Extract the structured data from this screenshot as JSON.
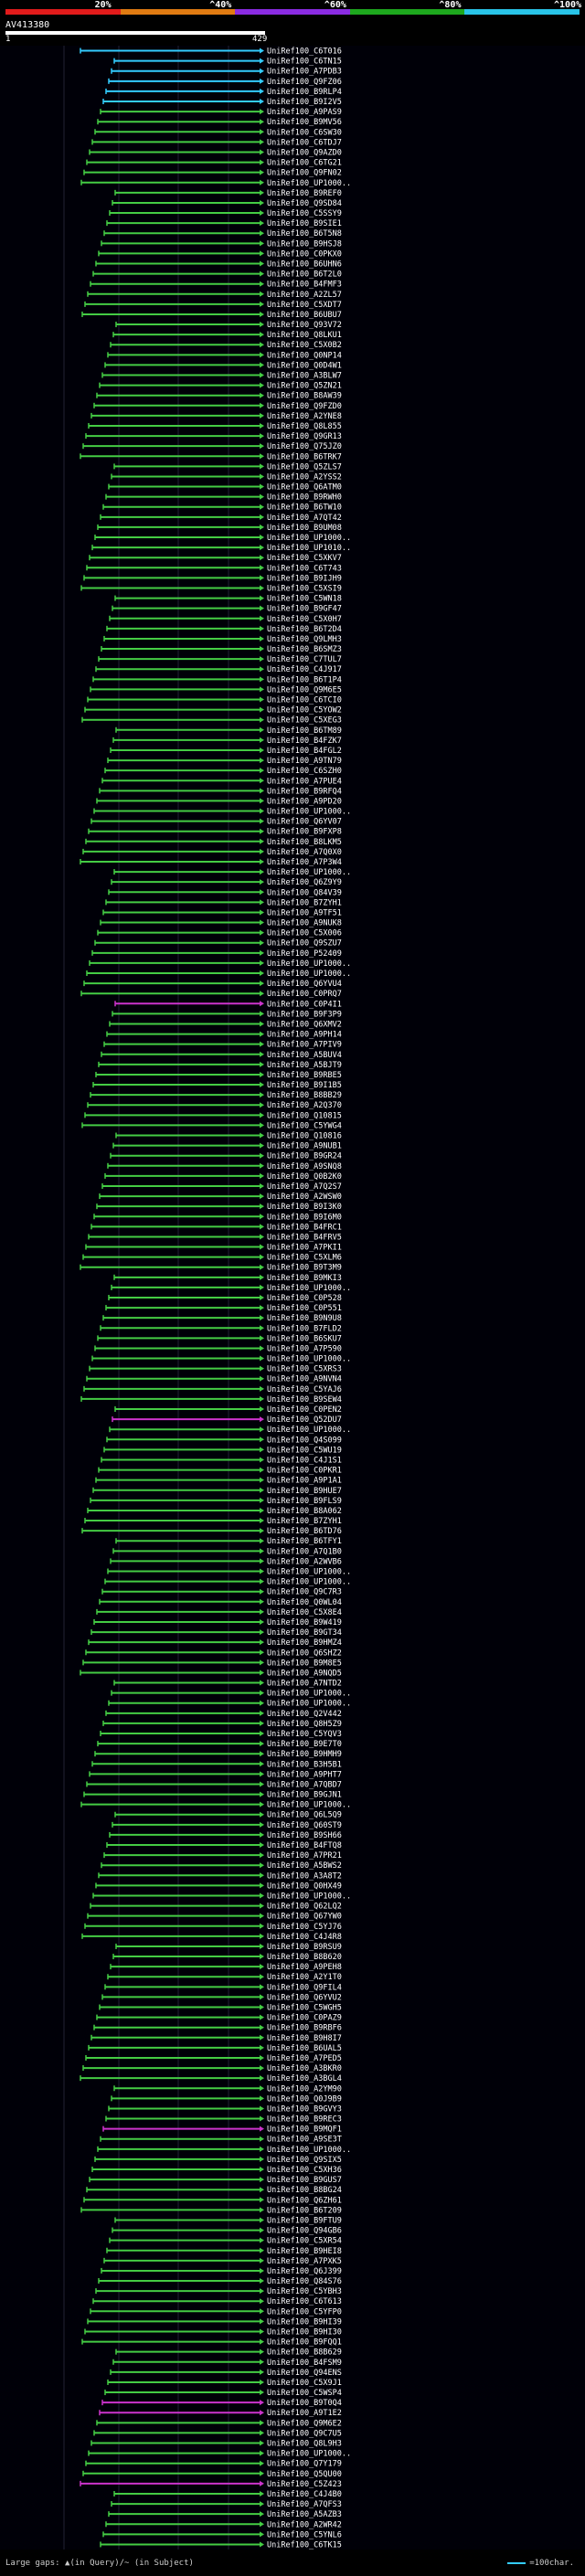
{
  "scale": {
    "labels": [
      "20%",
      "^40%",
      "^60%",
      "^80%",
      "^100%"
    ],
    "colors": [
      "#e21b1b",
      "#e07b12",
      "#8a2be2",
      "#1ea81e",
      "#29c4e8"
    ]
  },
  "query": {
    "name": "AV413380",
    "start": "1",
    "end": "429"
  },
  "hits": [
    {
      "label": "UniRef100_C6T016",
      "color": "#3cf"
    },
    {
      "label": "UniRef100_C6TN15",
      "color": "#3cf"
    },
    {
      "label": "UniRef100_A7PDB3",
      "color": "#3cf"
    },
    {
      "label": "UniRef100_Q9FZ06",
      "color": "#3cf"
    },
    {
      "label": "UniRef100_B9RLP4",
      "color": "#3cf"
    },
    {
      "label": "UniRef100_B9I2V5",
      "color": "#3cf"
    },
    {
      "label": "UniRef100_A9PAS9",
      "color": "#4c4"
    },
    {
      "label": "UniRef100_B9MV56",
      "color": "#4c4"
    },
    {
      "label": "UniRef100_C6SW30",
      "color": "#4c4"
    },
    {
      "label": "UniRef100_C6TDJ7",
      "color": "#4c4"
    },
    {
      "label": "UniRef100_Q9AZD0",
      "color": "#4c4"
    },
    {
      "label": "UniRef100_C6TG21",
      "color": "#4c4"
    },
    {
      "label": "UniRef100_Q9FN02",
      "color": "#4c4"
    },
    {
      "label": "UniRef100_UP1000..",
      "color": "#4c4"
    },
    {
      "label": "UniRef100_B9REF0",
      "color": "#4c4"
    },
    {
      "label": "UniRef100_Q9SD84",
      "color": "#4c4"
    },
    {
      "label": "UniRef100_C5SSY9",
      "color": "#4c4"
    },
    {
      "label": "UniRef100_B9SIE1",
      "color": "#4c4"
    },
    {
      "label": "UniRef100_B6T5N8",
      "color": "#4c4"
    },
    {
      "label": "UniRef100_B9HSJ8",
      "color": "#4c4"
    },
    {
      "label": "UniRef100_C0PKX0",
      "color": "#4c4"
    },
    {
      "label": "UniRef100_B6UHN6",
      "color": "#4c4"
    },
    {
      "label": "UniRef100_B6T2L0",
      "color": "#4c4"
    },
    {
      "label": "UniRef100_B4FMF3",
      "color": "#4c4"
    },
    {
      "label": "UniRef100_A2ZL57",
      "color": "#4c4"
    },
    {
      "label": "UniRef100_C5XDT7",
      "color": "#4c4"
    },
    {
      "label": "UniRef100_B6UBU7",
      "color": "#4c4"
    },
    {
      "label": "UniRef100_Q93V72",
      "color": "#4c4"
    },
    {
      "label": "UniRef100_Q8LKU1",
      "color": "#4c4"
    },
    {
      "label": "UniRef100_C5X0B2",
      "color": "#4c4"
    },
    {
      "label": "UniRef100_Q0NP14",
      "color": "#4c4"
    },
    {
      "label": "UniRef100_Q0D4W1",
      "color": "#4c4"
    },
    {
      "label": "UniRef100_A3BLW7",
      "color": "#4c4"
    },
    {
      "label": "UniRef100_Q5ZN21",
      "color": "#4c4"
    },
    {
      "label": "UniRef100_B8AW39",
      "color": "#4c4"
    },
    {
      "label": "UniRef100_Q9FZD0",
      "color": "#4c4"
    },
    {
      "label": "UniRef100_A2YNE8",
      "color": "#4c4"
    },
    {
      "label": "UniRef100_Q8L855",
      "color": "#4c4"
    },
    {
      "label": "UniRef100_Q9GR13",
      "color": "#4c4"
    },
    {
      "label": "UniRef100_Q75JZ0",
      "color": "#4c4"
    },
    {
      "label": "UniRef100_B6TRK7",
      "color": "#4c4"
    },
    {
      "label": "UniRef100_Q5ZLS7",
      "color": "#4c4"
    },
    {
      "label": "UniRef100_A2YSS2",
      "color": "#4c4"
    },
    {
      "label": "UniRef100_Q6ATM0",
      "color": "#4c4"
    },
    {
      "label": "UniRef100_B9RWH0",
      "color": "#4c4"
    },
    {
      "label": "UniRef100_B6TW10",
      "color": "#4c4"
    },
    {
      "label": "UniRef100_A7QT42",
      "color": "#4c4"
    },
    {
      "label": "UniRef100_B9UM08",
      "color": "#4c4"
    },
    {
      "label": "UniRef100_UP1000..",
      "color": "#4c4"
    },
    {
      "label": "UniRef100_UP1010..",
      "color": "#4c4"
    },
    {
      "label": "UniRef100_C5XKV7",
      "color": "#4c4"
    },
    {
      "label": "UniRef100_C6T743",
      "color": "#4c4"
    },
    {
      "label": "UniRef100_B9IJH9",
      "color": "#4c4"
    },
    {
      "label": "UniRef100_C5XSI9",
      "color": "#4c4"
    },
    {
      "label": "UniRef100_C5WN18",
      "color": "#4c4"
    },
    {
      "label": "UniRef100_B9GF47",
      "color": "#4c4"
    },
    {
      "label": "UniRef100_C5X0H7",
      "color": "#4c4"
    },
    {
      "label": "UniRef100_B6T2D4",
      "color": "#4c4"
    },
    {
      "label": "UniRef100_Q9LMH3",
      "color": "#4c4"
    },
    {
      "label": "UniRef100_B6SMZ3",
      "color": "#4c4"
    },
    {
      "label": "UniRef100_C7TUL7",
      "color": "#4c4"
    },
    {
      "label": "UniRef100_C4J917",
      "color": "#4c4"
    },
    {
      "label": "UniRef100_B6T1P4",
      "color": "#4c4"
    },
    {
      "label": "UniRef100_Q9M6E5",
      "color": "#4c4"
    },
    {
      "label": "UniRef100_C6TCI0",
      "color": "#4c4"
    },
    {
      "label": "UniRef100_C5YOW2",
      "color": "#4c4"
    },
    {
      "label": "UniRef100_C5XEG3",
      "color": "#4c4"
    },
    {
      "label": "UniRef100_B6TM89",
      "color": "#4c4"
    },
    {
      "label": "UniRef100_B4FZK7",
      "color": "#4c4"
    },
    {
      "label": "UniRef100_B4FGL2",
      "color": "#4c4"
    },
    {
      "label": "UniRef100_A9TN79",
      "color": "#4c4"
    },
    {
      "label": "UniRef100_C6SZH0",
      "color": "#4c4"
    },
    {
      "label": "UniRef100_A7PUE4",
      "color": "#4c4"
    },
    {
      "label": "UniRef100_B9RFQ4",
      "color": "#4c4"
    },
    {
      "label": "UniRef100_A9PD20",
      "color": "#4c4"
    },
    {
      "label": "UniRef100_UP1000..",
      "color": "#4c4"
    },
    {
      "label": "UniRef100_Q6YV07",
      "color": "#4c4"
    },
    {
      "label": "UniRef100_B9FXP8",
      "color": "#4c4"
    },
    {
      "label": "UniRef100_B8LKM5",
      "color": "#4c4"
    },
    {
      "label": "UniRef100_A7Q0X0",
      "color": "#4c4"
    },
    {
      "label": "UniRef100_A7P3W4",
      "color": "#4c4"
    },
    {
      "label": "UniRef100_UP1000..",
      "color": "#4c4"
    },
    {
      "label": "UniRef100_Q6Z9Y9",
      "color": "#4c4"
    },
    {
      "label": "UniRef100_Q84V39",
      "color": "#4c4"
    },
    {
      "label": "UniRef100_B7ZYH1",
      "color": "#4c4"
    },
    {
      "label": "UniRef100_A9TF51",
      "color": "#4c4"
    },
    {
      "label": "UniRef100_A9NUK8",
      "color": "#4c4"
    },
    {
      "label": "UniRef100_C5X006",
      "color": "#4c4"
    },
    {
      "label": "UniRef100_Q9SZU7",
      "color": "#4c4"
    },
    {
      "label": "UniRef100_P52409",
      "color": "#4c4"
    },
    {
      "label": "UniRef100_UP1000..",
      "color": "#4c4"
    },
    {
      "label": "UniRef100_UP1000..",
      "color": "#4c4"
    },
    {
      "label": "UniRef100_Q6YVU4",
      "color": "#4c4"
    },
    {
      "label": "UniRef100_C0PRQ7",
      "color": "#4c4"
    },
    {
      "label": "UniRef100_C0P4I1",
      "color": "#c3c"
    },
    {
      "label": "UniRef100_B9F3P9",
      "color": "#4c4"
    },
    {
      "label": "UniRef100_Q6XMV2",
      "color": "#4c4"
    },
    {
      "label": "UniRef100_A9PH14",
      "color": "#4c4"
    },
    {
      "label": "UniRef100_A7PIV9",
      "color": "#4c4"
    },
    {
      "label": "UniRef100_A5BUV4",
      "color": "#4c4"
    },
    {
      "label": "UniRef100_A5BJT9",
      "color": "#4c4"
    },
    {
      "label": "UniRef100_B9RBE5",
      "color": "#4c4"
    },
    {
      "label": "UniRef100_B9I1B5",
      "color": "#4c4"
    },
    {
      "label": "UniRef100_B8BB29",
      "color": "#4c4"
    },
    {
      "label": "UniRef100_A2Q370",
      "color": "#4c4"
    },
    {
      "label": "UniRef100_Q10815",
      "color": "#4c4"
    },
    {
      "label": "UniRef100_C5YWG4",
      "color": "#4c4"
    },
    {
      "label": "UniRef100_Q10816",
      "color": "#4c4"
    },
    {
      "label": "UniRef100_A9NUB1",
      "color": "#4c4"
    },
    {
      "label": "UniRef100_B9GR24",
      "color": "#4c4"
    },
    {
      "label": "UniRef100_A9SNQ8",
      "color": "#4c4"
    },
    {
      "label": "UniRef100_Q0B2K0",
      "color": "#4c4"
    },
    {
      "label": "UniRef100_A7Q2S7",
      "color": "#4c4"
    },
    {
      "label": "UniRef100_A2WSW0",
      "color": "#4c4"
    },
    {
      "label": "UniRef100_B9I3K0",
      "color": "#4c4"
    },
    {
      "label": "UniRef100_B9I6M0",
      "color": "#4c4"
    },
    {
      "label": "UniRef100_B4FRC1",
      "color": "#4c4"
    },
    {
      "label": "UniRef100_B4FRV5",
      "color": "#4c4"
    },
    {
      "label": "UniRef100_A7PKI1",
      "color": "#4c4"
    },
    {
      "label": "UniRef100_C5XLM6",
      "color": "#4c4"
    },
    {
      "label": "UniRef100_B9T3M9",
      "color": "#4c4"
    },
    {
      "label": "UniRef100_B9MKI3",
      "color": "#4c4"
    },
    {
      "label": "UniRef100_UP1000..",
      "color": "#4c4"
    },
    {
      "label": "UniRef100_C0P528",
      "color": "#4c4"
    },
    {
      "label": "UniRef100_C0P551",
      "color": "#4c4"
    },
    {
      "label": "UniRef100_B9N9U8",
      "color": "#4c4"
    },
    {
      "label": "UniRef100_B7FLD2",
      "color": "#4c4"
    },
    {
      "label": "UniRef100_B6SKU7",
      "color": "#4c4"
    },
    {
      "label": "UniRef100_A7P590",
      "color": "#4c4"
    },
    {
      "label": "UniRef100_UP1000..",
      "color": "#4c4"
    },
    {
      "label": "UniRef100_C5XRS3",
      "color": "#4c4"
    },
    {
      "label": "UniRef100_A9NVN4",
      "color": "#4c4"
    },
    {
      "label": "UniRef100_C5YAJ6",
      "color": "#4c4"
    },
    {
      "label": "UniRef100_B9SEW4",
      "color": "#4c4"
    },
    {
      "label": "UniRef100_C0PEN2",
      "color": "#4c4"
    },
    {
      "label": "UniRef100_Q52DU7",
      "color": "#c3c"
    },
    {
      "label": "UniRef100_UP1000..",
      "color": "#4c4"
    },
    {
      "label": "UniRef100_Q4S099",
      "color": "#4c4"
    },
    {
      "label": "UniRef100_C5WU19",
      "color": "#4c4"
    },
    {
      "label": "UniRef100_C4J1S1",
      "color": "#4c4"
    },
    {
      "label": "UniRef100_C0PKR1",
      "color": "#4c4"
    },
    {
      "label": "UniRef100_A9P1A1",
      "color": "#4c4"
    },
    {
      "label": "UniRef100_B9HUE7",
      "color": "#4c4"
    },
    {
      "label": "UniRef100_B9FLS9",
      "color": "#4c4"
    },
    {
      "label": "UniRef100_B8A062",
      "color": "#4c4"
    },
    {
      "label": "UniRef100_B7ZYH1",
      "color": "#4c4"
    },
    {
      "label": "UniRef100_B6TD76",
      "color": "#4c4"
    },
    {
      "label": "UniRef100_B6TFY1",
      "color": "#4c4"
    },
    {
      "label": "UniRef100_A7Q1B0",
      "color": "#4c4"
    },
    {
      "label": "UniRef100_A2WVB6",
      "color": "#4c4"
    },
    {
      "label": "UniRef100_UP1000..",
      "color": "#4c4"
    },
    {
      "label": "UniRef100_UP1000..",
      "color": "#4c4"
    },
    {
      "label": "UniRef100_Q9C7R3",
      "color": "#4c4"
    },
    {
      "label": "UniRef100_Q0WL04",
      "color": "#4c4"
    },
    {
      "label": "UniRef100_C5X8E4",
      "color": "#4c4"
    },
    {
      "label": "UniRef100_B9W419",
      "color": "#4c4"
    },
    {
      "label": "UniRef100_B9GT34",
      "color": "#4c4"
    },
    {
      "label": "UniRef100_B9HMZ4",
      "color": "#4c4"
    },
    {
      "label": "UniRef100_Q6SHZ2",
      "color": "#4c4"
    },
    {
      "label": "UniRef100_B9M8E5",
      "color": "#4c4"
    },
    {
      "label": "UniRef100_A9NQD5",
      "color": "#4c4"
    },
    {
      "label": "UniRef100_A7NTD2",
      "color": "#4c4"
    },
    {
      "label": "UniRef100_UP1000..",
      "color": "#4c4"
    },
    {
      "label": "UniRef100_UP1000..",
      "color": "#4c4"
    },
    {
      "label": "UniRef100_Q2V442",
      "color": "#4c4"
    },
    {
      "label": "UniRef100_Q8H5Z9",
      "color": "#4c4"
    },
    {
      "label": "UniRef100_C5YQV3",
      "color": "#4c4"
    },
    {
      "label": "UniRef100_B9E7T0",
      "color": "#4c4"
    },
    {
      "label": "UniRef100_B9HMH9",
      "color": "#4c4"
    },
    {
      "label": "UniRef100_B3H5B1",
      "color": "#4c4"
    },
    {
      "label": "UniRef100_A9PHT7",
      "color": "#4c4"
    },
    {
      "label": "UniRef100_A7QBD7",
      "color": "#4c4"
    },
    {
      "label": "UniRef100_B9GJN1",
      "color": "#4c4"
    },
    {
      "label": "UniRef100_UP1000..",
      "color": "#4c4"
    },
    {
      "label": "UniRef100_Q6L5Q9",
      "color": "#4c4"
    },
    {
      "label": "UniRef100_Q60ST9",
      "color": "#4c4"
    },
    {
      "label": "UniRef100_B9SH66",
      "color": "#4c4"
    },
    {
      "label": "UniRef100_B4FTQ8",
      "color": "#4c4"
    },
    {
      "label": "UniRef100_A7PR21",
      "color": "#4c4"
    },
    {
      "label": "UniRef100_A5BWS2",
      "color": "#4c4"
    },
    {
      "label": "UniRef100_A3A8T2",
      "color": "#4c4"
    },
    {
      "label": "UniRef100_Q0HX49",
      "color": "#4c4"
    },
    {
      "label": "UniRef100_UP1000..",
      "color": "#4c4"
    },
    {
      "label": "UniRef100_Q62LQ2",
      "color": "#4c4"
    },
    {
      "label": "UniRef100_Q67YW0",
      "color": "#4c4"
    },
    {
      "label": "UniRef100_C5YJ76",
      "color": "#4c4"
    },
    {
      "label": "UniRef100_C4J4R8",
      "color": "#4c4"
    },
    {
      "label": "UniRef100_B9RSU9",
      "color": "#4c4"
    },
    {
      "label": "UniRef100_B8B620",
      "color": "#4c4"
    },
    {
      "label": "UniRef100_A9PEH8",
      "color": "#4c4"
    },
    {
      "label": "UniRef100_A2Y1T0",
      "color": "#4c4"
    },
    {
      "label": "UniRef100_Q9FIL4",
      "color": "#4c4"
    },
    {
      "label": "UniRef100_Q6YVU2",
      "color": "#4c4"
    },
    {
      "label": "UniRef100_C5WGH5",
      "color": "#4c4"
    },
    {
      "label": "UniRef100_C0PAZ9",
      "color": "#4c4"
    },
    {
      "label": "UniRef100_B9RBF6",
      "color": "#4c4"
    },
    {
      "label": "UniRef100_B9H8I7",
      "color": "#4c4"
    },
    {
      "label": "UniRef100_B6UAL5",
      "color": "#4c4"
    },
    {
      "label": "UniRef100_A7PED5",
      "color": "#4c4"
    },
    {
      "label": "UniRef100_A3BKR0",
      "color": "#4c4"
    },
    {
      "label": "UniRef100_A3BGL4",
      "color": "#4c4"
    },
    {
      "label": "UniRef100_A2YM90",
      "color": "#4c4"
    },
    {
      "label": "UniRef100_Q0J9B9",
      "color": "#4c4"
    },
    {
      "label": "UniRef100_B9GVY3",
      "color": "#4c4"
    },
    {
      "label": "UniRef100_B9REC3",
      "color": "#4c4"
    },
    {
      "label": "UniRef100_B9MQF1",
      "color": "#c3c"
    },
    {
      "label": "UniRef100_A9SE3T",
      "color": "#4c4"
    },
    {
      "label": "UniRef100_UP1000..",
      "color": "#4c4"
    },
    {
      "label": "UniRef100_Q9SIX5",
      "color": "#4c4"
    },
    {
      "label": "UniRef100_C5XH36",
      "color": "#4c4"
    },
    {
      "label": "UniRef100_B9GUS7",
      "color": "#4c4"
    },
    {
      "label": "UniRef100_B8BG24",
      "color": "#4c4"
    },
    {
      "label": "UniRef100_Q6ZH61",
      "color": "#4c4"
    },
    {
      "label": "UniRef100_B6T209",
      "color": "#4c4"
    },
    {
      "label": "UniRef100_B9FTU9",
      "color": "#4c4"
    },
    {
      "label": "UniRef100_Q94GB6",
      "color": "#4c4"
    },
    {
      "label": "UniRef100_C5XR54",
      "color": "#4c4"
    },
    {
      "label": "UniRef100_B9HEI8",
      "color": "#4c4"
    },
    {
      "label": "UniRef100_A7PXK5",
      "color": "#4c4"
    },
    {
      "label": "UniRef100_Q6J399",
      "color": "#4c4"
    },
    {
      "label": "UniRef100_Q84S76",
      "color": "#4c4"
    },
    {
      "label": "UniRef100_C5YBH3",
      "color": "#4c4"
    },
    {
      "label": "UniRef100_C6T613",
      "color": "#4c4"
    },
    {
      "label": "UniRef100_C5YFP0",
      "color": "#4c4"
    },
    {
      "label": "UniRef100_B9HI39",
      "color": "#4c4"
    },
    {
      "label": "UniRef100_B9HI30",
      "color": "#4c4"
    },
    {
      "label": "UniRef100_B9FQQ1",
      "color": "#4c4"
    },
    {
      "label": "UniRef100_B8B629",
      "color": "#4c4"
    },
    {
      "label": "UniRef100_B4FSM9",
      "color": "#4c4"
    },
    {
      "label": "UniRef100_Q94ENS",
      "color": "#4c4"
    },
    {
      "label": "UniRef100_C5X9J1",
      "color": "#4c4"
    },
    {
      "label": "UniRef100_C5WSP4",
      "color": "#4c4"
    },
    {
      "label": "UniRef100_B9T0Q4",
      "color": "#c3c"
    },
    {
      "label": "UniRef100_A9T1E2",
      "color": "#c3c"
    },
    {
      "label": "UniRef100_Q9M6E2",
      "color": "#4c4"
    },
    {
      "label": "UniRef100_Q9C7U5",
      "color": "#4c4"
    },
    {
      "label": "UniRef100_Q8L9H3",
      "color": "#4c4"
    },
    {
      "label": "UniRef100_UP1000..",
      "color": "#4c4"
    },
    {
      "label": "UniRef100_Q7Y179",
      "color": "#4c4"
    },
    {
      "label": "UniRef100_Q5QU00",
      "color": "#4c4"
    },
    {
      "label": "UniRef100_C5Z423",
      "color": "#c3c"
    },
    {
      "label": "UniRef100_C4J4B0",
      "color": "#4c4"
    },
    {
      "label": "UniRef100_A7QFS3",
      "color": "#4c4"
    },
    {
      "label": "UniRef100_A5AZB3",
      "color": "#4c4"
    },
    {
      "label": "UniRef100_A2WR42",
      "color": "#4c4"
    },
    {
      "label": "UniRef100_C5YNL6",
      "color": "#4c4"
    },
    {
      "label": "UniRef100_C6TK15",
      "color": "#4c4"
    }
  ],
  "footer": {
    "large_gaps": "Large gaps: ▲(in Query)/~ (in Subject)",
    "legend": "=100char."
  }
}
